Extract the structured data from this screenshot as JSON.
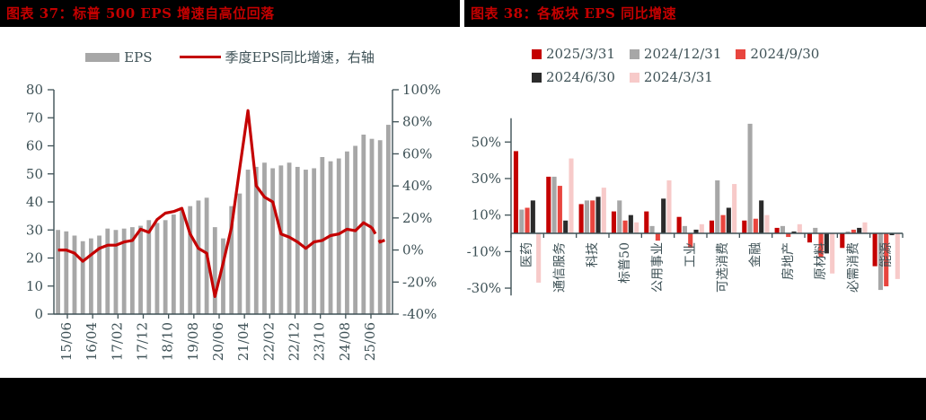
{
  "page": {
    "background": "#000000",
    "panel_background": "#ffffff",
    "title_color": "#C40000",
    "axis_color": "#3E5156"
  },
  "panels": [
    {
      "title": "图表 37：标普 500 EPS 增速自高位回落",
      "legend": [
        {
          "label": "EPS",
          "swatch": "bar",
          "color": "#A7A7A7"
        },
        {
          "label": "季度EPS同比增速，右轴",
          "swatch": "line",
          "color": "#C40000"
        }
      ]
    },
    {
      "title": "图表 38：各板块 EPS 同比增速",
      "legend": [
        {
          "label": "2025/3/31",
          "swatch": "square",
          "color": "#C40000"
        },
        {
          "label": "2024/12/31",
          "swatch": "square",
          "color": "#A7A7A7"
        },
        {
          "label": "2024/9/30",
          "swatch": "square",
          "color": "#E8453E"
        },
        {
          "label": "2024/6/30",
          "swatch": "square",
          "color": "#2B2B2B"
        },
        {
          "label": "2024/3/31",
          "swatch": "square",
          "color": "#F7CAC9"
        }
      ]
    }
  ],
  "chart_data": [
    {
      "type": "bar",
      "subtype": "combo bar+line, dual axis",
      "title": "标普 500 EPS 增速自高位回落",
      "x_tick_labels": [
        "15/06",
        "16/04",
        "17/02",
        "17/12",
        "18/10",
        "19/08",
        "20/06",
        "21/04",
        "22/02",
        "22/12",
        "23/10",
        "24/08",
        "25/06"
      ],
      "n_points": 41,
      "left_axis": {
        "min": 0,
        "max": 80,
        "step": 10,
        "ticks": [
          80,
          70,
          60,
          50,
          40,
          30,
          20,
          10,
          0
        ]
      },
      "right_axis": {
        "min": -40,
        "max": 100,
        "step": 20,
        "ticks": [
          100,
          80,
          60,
          40,
          20,
          0,
          -20,
          -40
        ],
        "format": "percent"
      },
      "series": [
        {
          "name": "EPS",
          "kind": "bar",
          "axis": "left",
          "color": "#A7A7A7",
          "values": [
            30,
            29.5,
            28,
            26,
            27,
            28,
            30.5,
            30,
            30.5,
            31,
            31.5,
            33.5,
            32.5,
            33.5,
            35.5,
            37,
            38.5,
            40.5,
            41.5,
            31,
            27,
            38.5,
            43,
            51.5,
            52.5,
            54,
            52,
            53,
            54,
            52.5,
            51.5,
            52,
            56,
            54.5,
            55.5,
            58,
            60,
            64,
            62.5,
            62,
            67.5
          ]
        },
        {
          "name": "季度EPS同比增速，右轴",
          "kind": "line",
          "axis": "right",
          "color": "#C40000",
          "dashed_tail_points": 3,
          "values": [
            0,
            0,
            -2,
            -7,
            -3,
            1,
            3,
            3,
            5,
            6,
            13,
            11,
            19,
            23,
            24,
            26,
            10,
            1,
            -2,
            -29,
            -8,
            14,
            51,
            87,
            40,
            33,
            30,
            10,
            8,
            5,
            1,
            5,
            6,
            9,
            10,
            13,
            12,
            17,
            14,
            5,
            7
          ]
        }
      ]
    },
    {
      "type": "bar",
      "subtype": "grouped bars",
      "title": "各板块 EPS 同比增速",
      "categories": [
        "医药",
        "通信服务",
        "科技",
        "标普50",
        "公用事业",
        "工业",
        "可选消费",
        "金融",
        "房地产",
        "原材料",
        "必需消费",
        "能源"
      ],
      "y_axis": {
        "min": -34,
        "max": 63,
        "ticks": [
          50,
          30,
          10,
          -10,
          -30
        ],
        "format": "percent"
      },
      "series": [
        {
          "name": "2025/3/31",
          "color": "#C40000",
          "values": [
            45,
            31,
            16,
            12,
            12,
            9,
            7,
            7,
            3,
            -5,
            -8,
            -18
          ]
        },
        {
          "name": "2024/12/31",
          "color": "#A7A7A7",
          "values": [
            13,
            31,
            18,
            18,
            4,
            4,
            29,
            60,
            4,
            3,
            1,
            -31
          ]
        },
        {
          "name": "2024/9/30",
          "color": "#E8453E",
          "values": [
            14,
            26,
            18,
            7,
            -4,
            -8,
            10,
            8,
            -2,
            -13,
            2,
            -29
          ]
        },
        {
          "name": "2024/6/30",
          "color": "#2B2B2B",
          "values": [
            18,
            7,
            20,
            10,
            19,
            2,
            14,
            18,
            1,
            -11,
            3,
            -1
          ]
        },
        {
          "name": "2024/3/31",
          "color": "#F7CAC9",
          "values": [
            -27,
            41,
            25,
            6,
            29,
            5,
            27,
            10,
            5,
            -22,
            6,
            -25
          ]
        }
      ]
    }
  ]
}
